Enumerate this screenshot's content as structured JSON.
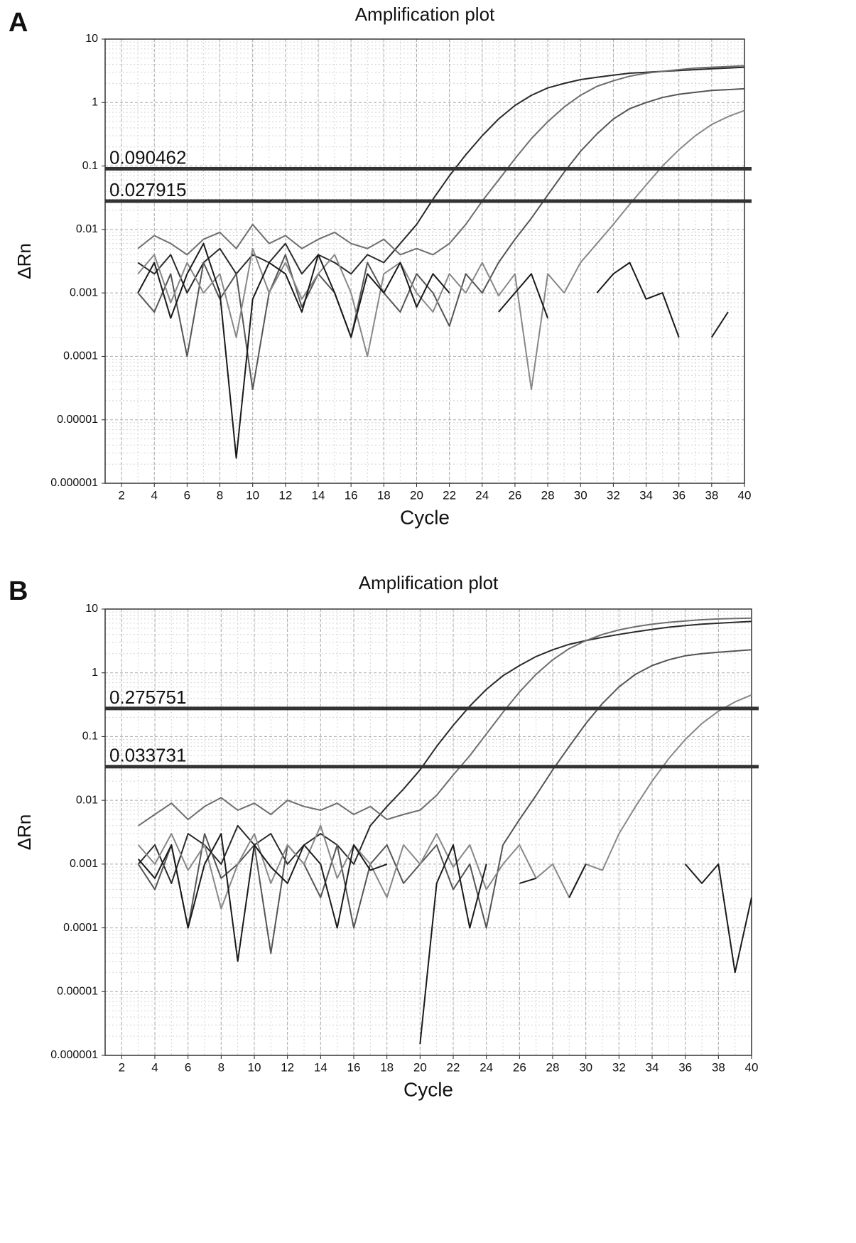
{
  "chart_data": [
    {
      "type": "line",
      "panel_label": "A",
      "title": "Amplification plot",
      "x_label": "Cycle",
      "y_label": "ΔRn",
      "log_scale": true,
      "grid": true,
      "minor_grid": true,
      "xlim": [
        1,
        40
      ],
      "xticks": [
        2,
        4,
        6,
        8,
        10,
        12,
        14,
        16,
        18,
        20,
        22,
        24,
        26,
        28,
        30,
        32,
        34,
        36,
        38,
        40
      ],
      "ylim": [
        1e-06,
        10
      ],
      "yticks": [
        10,
        1,
        0.1,
        0.01,
        0.001,
        0.0001,
        1e-05,
        1e-06
      ],
      "thresholds": [
        0.090462,
        0.027915
      ],
      "x": [
        3,
        4,
        5,
        6,
        7,
        8,
        9,
        10,
        11,
        12,
        13,
        14,
        15,
        16,
        17,
        18,
        19,
        20,
        21,
        22,
        23,
        24,
        25,
        26,
        27,
        28,
        29,
        30,
        31,
        32,
        33,
        34,
        35,
        36,
        37,
        38,
        39,
        40
      ],
      "series": [
        {
          "color": "#2a2a2a",
          "values": [
            0.003,
            0.002,
            0.004,
            0.001,
            0.003,
            0.005,
            0.002,
            0.004,
            0.003,
            0.006,
            0.002,
            0.004,
            0.003,
            0.002,
            0.004,
            0.003,
            0.006,
            0.012,
            0.03,
            0.07,
            0.15,
            0.3,
            0.55,
            0.9,
            1.3,
            1.7,
            2.0,
            2.3,
            2.5,
            2.7,
            2.9,
            3.0,
            3.1,
            3.2,
            3.3,
            3.4,
            3.5,
            3.6
          ]
        },
        {
          "color": "#555555",
          "values": [
            0.001,
            0.0005,
            0.002,
            0.0001,
            0.003,
            0.0008,
            0.002,
            3e-05,
            0.001,
            0.004,
            0.0006,
            0.002,
            0.001,
            0.0002,
            0.003,
            0.001,
            0.0005,
            0.002,
            0.001,
            0.0003,
            0.002,
            0.001,
            0.003,
            0.007,
            0.015,
            0.035,
            0.08,
            0.17,
            0.32,
            0.55,
            0.8,
            1.0,
            1.2,
            1.35,
            1.45,
            1.55,
            1.6,
            1.65
          ]
        },
        {
          "color": "#888888",
          "values": [
            0.002,
            0.004,
            0.0007,
            0.003,
            0.001,
            0.002,
            0.0002,
            0.005,
            0.001,
            0.003,
            0.0008,
            0.002,
            0.004,
            0.001,
            0.0001,
            0.002,
            0.003,
            0.001,
            0.0005,
            0.002,
            0.001,
            0.003,
            0.0009,
            0.002,
            3e-05,
            0.002,
            0.001,
            0.003,
            0.006,
            0.012,
            0.025,
            0.05,
            0.1,
            0.18,
            0.3,
            0.45,
            0.6,
            0.75
          ]
        },
        {
          "color": "#1a1a1a",
          "values": [
            0.001,
            0.003,
            0.0004,
            0.002,
            0.006,
            0.001,
            2.5e-06,
            0.0008,
            0.003,
            0.002,
            0.0005,
            0.004,
            0.001,
            0.0002,
            0.002,
            0.001,
            0.003,
            0.0006,
            0.002,
            0.001,
            null,
            null,
            0.0005,
            0.001,
            0.002,
            0.0004,
            null,
            null,
            0.001,
            0.002,
            0.003,
            0.0008,
            0.001,
            0.0002,
            null,
            0.0002,
            0.0005,
            null
          ]
        },
        {
          "color": "#6e6e6e",
          "values": [
            0.005,
            0.008,
            0.006,
            0.004,
            0.007,
            0.009,
            0.005,
            0.012,
            0.006,
            0.008,
            0.005,
            0.007,
            0.009,
            0.006,
            0.005,
            0.007,
            0.004,
            0.005,
            0.004,
            0.006,
            0.012,
            0.028,
            0.06,
            0.13,
            0.27,
            0.5,
            0.85,
            1.3,
            1.8,
            2.2,
            2.6,
            2.9,
            3.1,
            3.3,
            3.5,
            3.6,
            3.7,
            3.8
          ]
        }
      ]
    },
    {
      "type": "line",
      "panel_label": "B",
      "title": "Amplification plot",
      "x_label": "Cycle",
      "y_label": "ΔRn",
      "log_scale": true,
      "grid": true,
      "minor_grid": true,
      "xlim": [
        1,
        40
      ],
      "xticks": [
        2,
        4,
        6,
        8,
        10,
        12,
        14,
        16,
        18,
        20,
        22,
        24,
        26,
        28,
        30,
        32,
        34,
        36,
        38,
        40
      ],
      "ylim": [
        1e-06,
        10
      ],
      "yticks": [
        10,
        1,
        0.1,
        0.01,
        0.001,
        0.0001,
        1e-05,
        1e-06
      ],
      "thresholds": [
        0.275751,
        0.033731
      ],
      "x": [
        3,
        4,
        5,
        6,
        7,
        8,
        9,
        10,
        11,
        12,
        13,
        14,
        15,
        16,
        17,
        18,
        19,
        20,
        21,
        22,
        23,
        24,
        25,
        26,
        27,
        28,
        29,
        30,
        31,
        32,
        33,
        34,
        35,
        36,
        37,
        38,
        39,
        40
      ],
      "series": [
        {
          "color": "#2a2a2a",
          "values": [
            0.001,
            0.002,
            0.0005,
            0.003,
            0.002,
            0.001,
            0.004,
            0.002,
            0.003,
            0.001,
            0.002,
            0.003,
            0.002,
            0.001,
            0.004,
            0.008,
            0.015,
            0.03,
            0.07,
            0.15,
            0.3,
            0.55,
            0.9,
            1.3,
            1.8,
            2.3,
            2.8,
            3.2,
            3.6,
            4.0,
            4.4,
            4.8,
            5.2,
            5.5,
            5.8,
            6.0,
            6.2,
            6.4
          ]
        },
        {
          "color": "#555555",
          "values": [
            0.001,
            0.0004,
            0.002,
            0.0001,
            0.003,
            0.0006,
            0.001,
            0.002,
            4e-05,
            0.002,
            0.001,
            0.0003,
            0.002,
            0.0001,
            0.001,
            0.002,
            0.0005,
            0.001,
            0.002,
            0.0004,
            0.001,
            0.0001,
            0.002,
            0.005,
            0.012,
            0.03,
            0.07,
            0.16,
            0.33,
            0.6,
            0.95,
            1.3,
            1.6,
            1.85,
            2.0,
            2.1,
            2.2,
            2.3
          ]
        },
        {
          "color": "#888888",
          "values": [
            0.002,
            0.001,
            0.003,
            0.0008,
            0.002,
            0.0002,
            0.001,
            0.003,
            0.0005,
            0.002,
            0.001,
            0.004,
            0.0006,
            0.002,
            0.001,
            0.0003,
            0.002,
            0.001,
            0.003,
            0.0009,
            0.002,
            0.0004,
            0.001,
            0.002,
            0.0006,
            0.001,
            0.0003,
            0.001,
            0.0008,
            0.003,
            0.008,
            0.02,
            0.045,
            0.09,
            0.16,
            0.25,
            0.35,
            0.45
          ]
        },
        {
          "color": "#1a1a1a",
          "values": [
            0.0012,
            0.0006,
            0.002,
            0.0001,
            0.001,
            0.003,
            3e-05,
            0.002,
            0.0009,
            0.0005,
            0.002,
            0.001,
            0.0001,
            0.002,
            0.0008,
            0.001,
            null,
            1.5e-06,
            0.0005,
            0.002,
            0.0001,
            0.001,
            null,
            0.0005,
            0.0006,
            null,
            0.0003,
            0.001,
            null,
            null,
            null,
            null,
            null,
            0.001,
            0.0005,
            0.001,
            2e-05,
            0.0003
          ]
        },
        {
          "color": "#6e6e6e",
          "values": [
            0.004,
            0.006,
            0.009,
            0.005,
            0.008,
            0.011,
            0.007,
            0.009,
            0.006,
            0.01,
            0.008,
            0.007,
            0.009,
            0.006,
            0.008,
            0.005,
            0.006,
            0.007,
            0.012,
            0.025,
            0.05,
            0.11,
            0.24,
            0.5,
            0.95,
            1.6,
            2.4,
            3.2,
            4.0,
            4.7,
            5.3,
            5.8,
            6.2,
            6.5,
            6.8,
            7.0,
            7.1,
            7.2
          ]
        }
      ]
    }
  ]
}
